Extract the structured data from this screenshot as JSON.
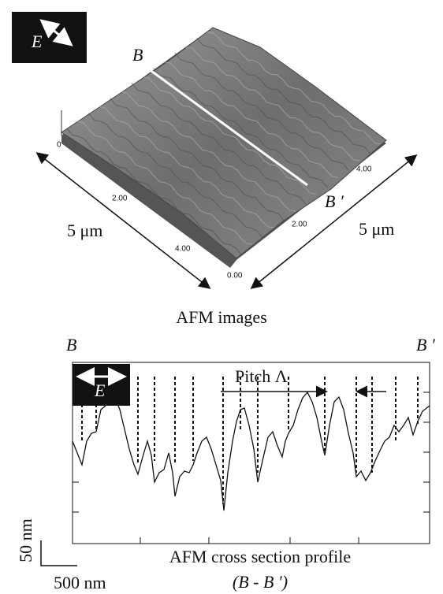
{
  "top_panel": {
    "polarization_label": "E",
    "point_b": "B",
    "point_b_prime": "B ′",
    "left_axis_ticks": [
      "0",
      "2.00",
      "4.00"
    ],
    "right_axis_ticks": [
      "0.00",
      "2.00",
      "4.00"
    ],
    "left_dimension": "5 μm",
    "right_dimension": "5 μm",
    "caption": "AFM images"
  },
  "bottom_panel": {
    "point_b": "B",
    "point_b_prime": "B ′",
    "polarization_label": "E",
    "pitch_label": "Pitch Λ",
    "scale_vertical": "50 nm",
    "scale_horizontal": "500 nm",
    "caption": "AFM cross section profile",
    "caption_range": "(B - B ′)"
  }
}
